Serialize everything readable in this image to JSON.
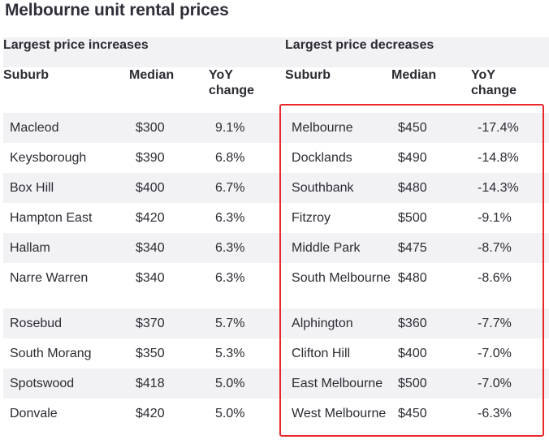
{
  "title": "Melbourne unit rental prices",
  "increases": {
    "heading": "Largest price increases",
    "columns": [
      "Suburb",
      "Median",
      "YoY change"
    ],
    "rows": [
      {
        "suburb": "Macleod",
        "median": "$300",
        "change": "9.1%"
      },
      {
        "suburb": "Keysborough",
        "median": "$390",
        "change": "6.8%"
      },
      {
        "suburb": "Box Hill",
        "median": "$400",
        "change": "6.7%"
      },
      {
        "suburb": "Hampton East",
        "median": "$420",
        "change": "6.3%"
      },
      {
        "suburb": "Hallam",
        "median": "$340",
        "change": "6.3%"
      },
      {
        "suburb": "Narre Warren",
        "median": "$340",
        "change": "6.3%"
      },
      {
        "suburb": "Rosebud",
        "median": "$370",
        "change": "5.7%"
      },
      {
        "suburb": "South Morang",
        "median": "$350",
        "change": "5.3%"
      },
      {
        "suburb": "Spotswood",
        "median": "$418",
        "change": "5.0%"
      },
      {
        "suburb": "Donvale",
        "median": "$420",
        "change": "5.0%"
      }
    ]
  },
  "decreases": {
    "heading": "Largest price decreases",
    "columns": [
      "Suburb",
      "Median",
      "YoY change"
    ],
    "rows": [
      {
        "suburb": "Melbourne",
        "median": "$450",
        "change": "-17.4%"
      },
      {
        "suburb": "Docklands",
        "median": "$490",
        "change": "-14.8%"
      },
      {
        "suburb": "Southbank",
        "median": "$480",
        "change": "-14.3%"
      },
      {
        "suburb": "Fitzroy",
        "median": "$500",
        "change": "-9.1%"
      },
      {
        "suburb": "Middle Park",
        "median": "$475",
        "change": "-8.7%"
      },
      {
        "suburb": "South Melbourne",
        "median": "$480",
        "change": "-8.6%"
      },
      {
        "suburb": "Alphington",
        "median": "$360",
        "change": "-7.7%"
      },
      {
        "suburb": "Clifton Hill",
        "median": "$400",
        "change": "-7.0%"
      },
      {
        "suburb": "East Melbourne",
        "median": "$500",
        "change": "-7.0%"
      },
      {
        "suburb": "West Melbourne",
        "median": "$450",
        "change": "-6.3%"
      }
    ]
  },
  "colors": {
    "highlight_border": "#e8272a",
    "stripe": "#f2f2f5"
  }
}
